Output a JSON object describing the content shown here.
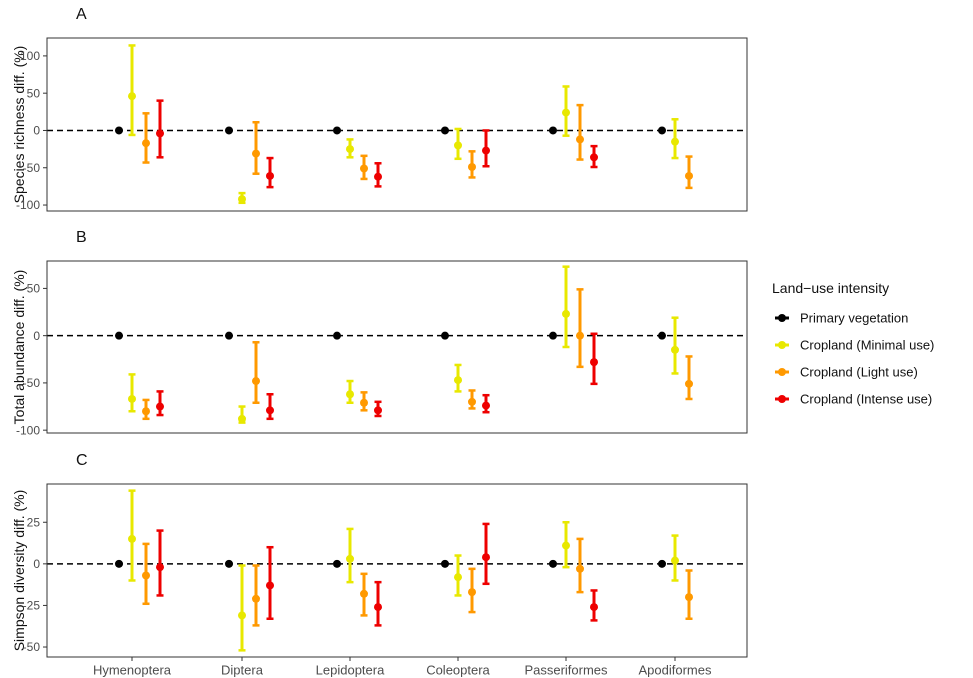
{
  "chart_data": {
    "type": "scatter",
    "subtype": "point-range (mean with confidence interval)",
    "categories": [
      "Hymenoptera",
      "Diptera",
      "Lepidoptera",
      "Coleoptera",
      "Passeriformes",
      "Apodiformes"
    ],
    "legend": {
      "title": "Land−use intensity",
      "placement": "right",
      "items": [
        {
          "key": "primary",
          "label": "Primary vegetation",
          "color": "#000000"
        },
        {
          "key": "minimal",
          "label": "Cropland (Minimal use)",
          "color": "#e8e800"
        },
        {
          "key": "light",
          "label": "Cropland (Light use)",
          "color": "#ff9900"
        },
        {
          "key": "intense",
          "label": "Cropland (Intense use)",
          "color": "#ee0000"
        }
      ]
    },
    "panels": [
      {
        "letter": "A",
        "ylabel": "Species richness diff. (%)",
        "ylim": [
          -108,
          124
        ],
        "yticks": [
          100,
          50,
          0,
          -50,
          -100
        ],
        "reference_line": 0,
        "series": {
          "primary": [
            [
              0,
              0,
              0
            ],
            [
              0,
              0,
              0
            ],
            [
              0,
              0,
              0
            ],
            [
              0,
              0,
              0
            ],
            [
              0,
              0,
              0
            ],
            [
              0,
              0,
              0
            ]
          ],
          "minimal": [
            [
              46,
              -6,
              114
            ],
            [
              -92,
              -97,
              -84
            ],
            [
              -25,
              -36,
              -12
            ],
            [
              -20,
              -38,
              2
            ],
            [
              24,
              -7,
              59
            ],
            [
              -15,
              -37,
              15
            ]
          ],
          "light": [
            [
              -17,
              -43,
              23
            ],
            [
              -31,
              -58,
              11
            ],
            [
              -51,
              -65,
              -34
            ],
            [
              -49,
              -63,
              -28
            ],
            [
              -12,
              -39,
              34
            ],
            [
              -61,
              -77,
              -35
            ]
          ],
          "intense": [
            [
              -4,
              -36,
              40
            ],
            [
              -61,
              -76,
              -37
            ],
            [
              -62,
              -75,
              -44
            ],
            [
              -27,
              -48,
              0
            ],
            [
              -36,
              -49,
              -21
            ],
            null
          ]
        }
      },
      {
        "letter": "B",
        "ylabel": "Total abundance diff. (%)",
        "ylim": [
          -103,
          79
        ],
        "yticks": [
          50,
          0,
          -50,
          -100
        ],
        "reference_line": 0,
        "series": {
          "primary": [
            [
              0,
              0,
              0
            ],
            [
              0,
              0,
              0
            ],
            [
              0,
              0,
              0
            ],
            [
              0,
              0,
              0
            ],
            [
              0,
              0,
              0
            ],
            [
              0,
              0,
              0
            ]
          ],
          "minimal": [
            [
              -67,
              -80,
              -41
            ],
            [
              -88,
              -92,
              -75
            ],
            [
              -62,
              -71,
              -48
            ],
            [
              -47,
              -59,
              -31
            ],
            [
              23,
              -12,
              73
            ],
            [
              -15,
              -40,
              19
            ]
          ],
          "light": [
            [
              -80,
              -88,
              -68
            ],
            [
              -48,
              -71,
              -7
            ],
            [
              -71,
              -79,
              -60
            ],
            [
              -70,
              -77,
              -58
            ],
            [
              0,
              -33,
              49
            ],
            [
              -51,
              -67,
              -22
            ]
          ],
          "intense": [
            [
              -75,
              -84,
              -59
            ],
            [
              -79,
              -88,
              -62
            ],
            [
              -79,
              -85,
              -70
            ],
            [
              -74,
              -81,
              -63
            ],
            [
              -28,
              -51,
              2
            ],
            null
          ]
        }
      },
      {
        "letter": "C",
        "ylabel": "Simpson diversity diff. (%)",
        "ylim": [
          -56,
          48
        ],
        "yticks": [
          25,
          0,
          -25,
          -50
        ],
        "reference_line": 0,
        "series": {
          "primary": [
            [
              0,
              0,
              0
            ],
            [
              0,
              0,
              0
            ],
            [
              0,
              0,
              0
            ],
            [
              0,
              0,
              0
            ],
            [
              0,
              0,
              0
            ],
            [
              0,
              0,
              0
            ]
          ],
          "minimal": [
            [
              15,
              -10,
              44
            ],
            [
              -31,
              -52,
              -1
            ],
            [
              3,
              -11,
              21
            ],
            [
              -8,
              -19,
              5
            ],
            [
              11,
              -2,
              25
            ],
            [
              2,
              -10,
              17
            ]
          ],
          "light": [
            [
              -7,
              -24,
              12
            ],
            [
              -21,
              -37,
              -1
            ],
            [
              -18,
              -31,
              -6
            ],
            [
              -17,
              -29,
              -3
            ],
            [
              -3,
              -17,
              15
            ],
            [
              -20,
              -33,
              -4
            ]
          ],
          "intense": [
            [
              -2,
              -19,
              20
            ],
            [
              -13,
              -33,
              10
            ],
            [
              -26,
              -37,
              -11
            ],
            [
              4,
              -12,
              24
            ],
            [
              -26,
              -34,
              -16
            ],
            null
          ]
        }
      }
    ]
  }
}
